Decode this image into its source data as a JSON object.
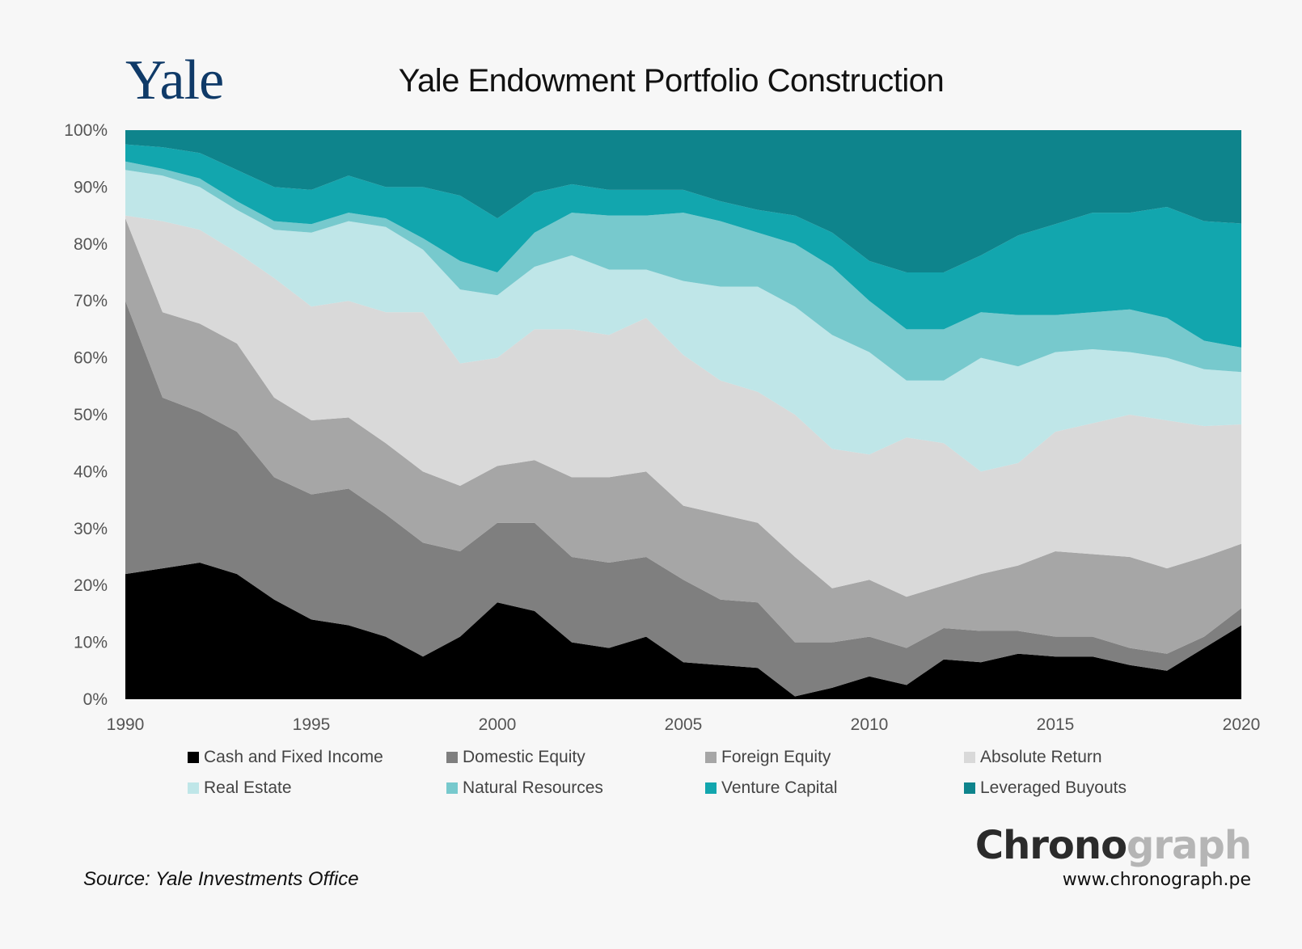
{
  "logo": "Yale",
  "title": "Yale Endowment Portfolio Construction",
  "source": "Source: Yale Investments Office",
  "brand": {
    "dark": "Chrono",
    "light": "graph",
    "url": "www.chronograph.pe"
  },
  "chart_data": {
    "type": "area",
    "stacked": true,
    "title": "Yale Endowment Portfolio Construction",
    "xlabel": "",
    "ylabel": "",
    "xlim": [
      1990,
      2020
    ],
    "ylim": [
      0,
      100
    ],
    "x_ticks": [
      1990,
      1995,
      2000,
      2005,
      2010,
      2015,
      2020
    ],
    "y_ticks": [
      "0%",
      "10%",
      "20%",
      "30%",
      "40%",
      "50%",
      "60%",
      "70%",
      "80%",
      "90%",
      "100%"
    ],
    "grid": false,
    "legend_position": "bottom",
    "x": [
      1990,
      1991,
      1992,
      1993,
      1994,
      1995,
      1996,
      1997,
      1998,
      1999,
      2000,
      2001,
      2002,
      2003,
      2004,
      2005,
      2006,
      2007,
      2008,
      2009,
      2010,
      2011,
      2012,
      2013,
      2014,
      2015,
      2016,
      2017,
      2018,
      2019,
      2020
    ],
    "series": [
      {
        "name": "Cash and Fixed Income",
        "color": "#000000",
        "values": [
          22,
          23,
          24,
          22,
          17.5,
          14,
          13,
          11,
          7.5,
          11,
          17,
          15.5,
          10,
          9,
          11,
          6.5,
          6,
          5.5,
          0.5,
          2,
          4,
          2.5,
          7,
          6.5,
          8,
          7.5,
          7.5,
          6,
          5,
          9,
          13
        ]
      },
      {
        "name": "Domestic Equity",
        "color": "#7f7f7f",
        "values": [
          48,
          30,
          26.5,
          25,
          21.5,
          22,
          24,
          21.5,
          20,
          15,
          14,
          15.5,
          15,
          15,
          14,
          14.5,
          11.5,
          11.5,
          9.5,
          8,
          7,
          6.5,
          5.5,
          5.5,
          4,
          3.5,
          3.5,
          3,
          3,
          2,
          3
        ]
      },
      {
        "name": "Foreign Equity",
        "color": "#a6a6a6",
        "values": [
          14.5,
          15,
          15.5,
          15.5,
          14,
          13,
          12.5,
          12.5,
          12.5,
          11.5,
          10,
          11,
          14,
          15,
          15,
          13,
          15,
          14,
          15,
          9.5,
          10,
          9,
          7.5,
          10,
          11.5,
          15,
          14.5,
          16,
          15,
          14,
          11.3
        ]
      },
      {
        "name": "Absolute Return",
        "color": "#d9d9d9",
        "values": [
          0.5,
          16,
          16.5,
          16,
          21,
          20,
          20.5,
          23,
          28,
          21.5,
          19,
          23,
          26,
          25,
          27,
          26.5,
          23.5,
          23,
          25,
          24.5,
          22,
          28,
          25,
          18,
          18,
          21,
          23,
          25,
          26,
          23,
          21
        ]
      },
      {
        "name": "Real Estate",
        "color": "#bfe6e8",
        "values": [
          8,
          8,
          7.5,
          7.5,
          8.5,
          13,
          14,
          15,
          11,
          13,
          11,
          11,
          13,
          11.5,
          8.5,
          13,
          16.5,
          18.5,
          19,
          20,
          18,
          10,
          11,
          20,
          17,
          14,
          13,
          11,
          11,
          10,
          9.2
        ]
      },
      {
        "name": "Natural Resources",
        "color": "#77c9cd",
        "values": [
          1.5,
          1.2,
          1.5,
          1.5,
          1.5,
          1.5,
          1.5,
          1.5,
          2,
          5,
          4,
          6,
          7.5,
          9.5,
          9.5,
          12,
          11.5,
          9.5,
          11,
          12,
          9,
          9,
          9,
          8,
          9,
          6.5,
          6.5,
          7.5,
          7,
          5,
          4.3
        ]
      },
      {
        "name": "Venture Capital",
        "color": "#12a6ae",
        "values": [
          3,
          3.8,
          4.5,
          5.5,
          6,
          6,
          6.5,
          5.5,
          9,
          11.5,
          9.5,
          7,
          5,
          4.5,
          4.5,
          4,
          3.5,
          4,
          5,
          6,
          7,
          10,
          10,
          10,
          14,
          16,
          17.5,
          17,
          19.5,
          21,
          21.8
        ]
      },
      {
        "name": "Leveraged Buyouts",
        "color": "#0e848c",
        "values": [
          2.5,
          3,
          3.5,
          7,
          10,
          10.5,
          8,
          10,
          10,
          11,
          15.5,
          11,
          9.5,
          10.5,
          10.5,
          10.5,
          12.5,
          14,
          15,
          18,
          23,
          25,
          25,
          22,
          18.5,
          16.5,
          14.5,
          14,
          13.5,
          16,
          16
        ]
      }
    ]
  }
}
